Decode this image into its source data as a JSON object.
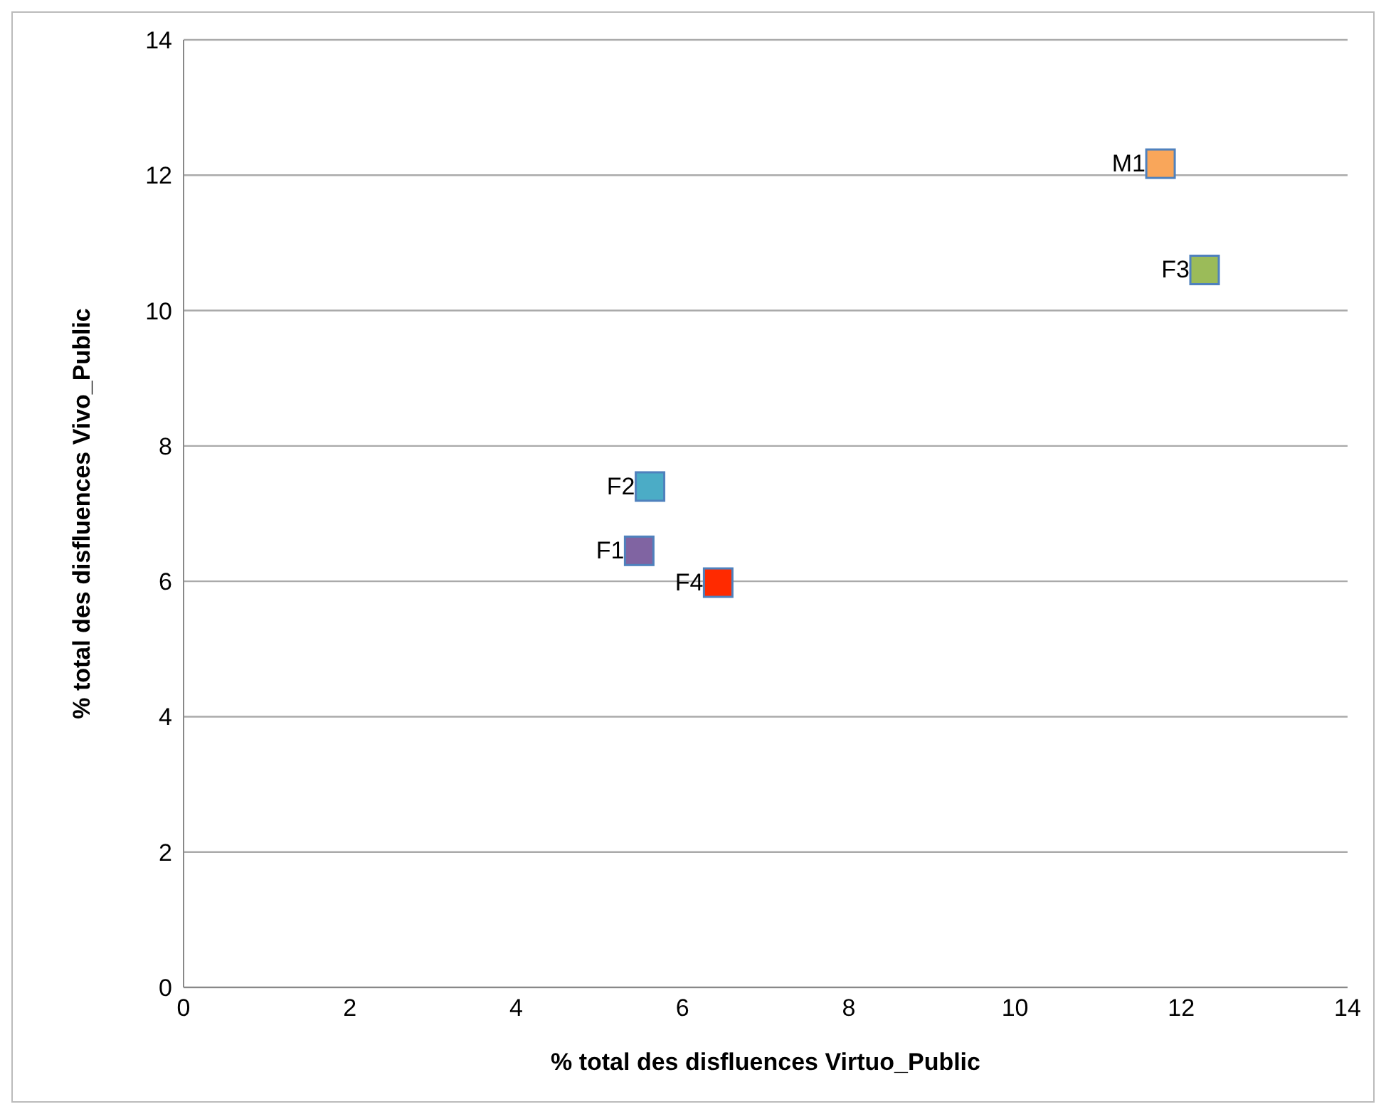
{
  "chart_data": {
    "type": "scatter",
    "xlabel": "% total des disfluences Virtuo_Public",
    "ylabel": "% total des disfluences  Vivo_Public",
    "series": [
      {
        "name": "M1",
        "color": "#f9a65a",
        "x": [
          11.75
        ],
        "values": [
          12.17
        ]
      },
      {
        "name": "F3",
        "color": "#9bbb59",
        "x": [
          12.28
        ],
        "values": [
          10.6
        ]
      },
      {
        "name": "F2",
        "color": "#4bacc6",
        "x": [
          5.61
        ],
        "values": [
          7.4
        ]
      },
      {
        "name": "F1",
        "color": "#8064a2",
        "x": [
          5.48
        ],
        "values": [
          6.45
        ]
      },
      {
        "name": "F4",
        "color": "#ff2a00",
        "x": [
          6.43
        ],
        "values": [
          5.98
        ]
      }
    ],
    "xlim": [
      0,
      14
    ],
    "xticks": [
      0,
      2,
      4,
      6,
      8,
      10,
      12,
      14
    ],
    "ylim": [
      0,
      14
    ],
    "yticks": [
      0,
      2,
      4,
      6,
      8,
      10,
      12,
      14
    ],
    "grid": "y",
    "marker": "square",
    "legend": false
  }
}
